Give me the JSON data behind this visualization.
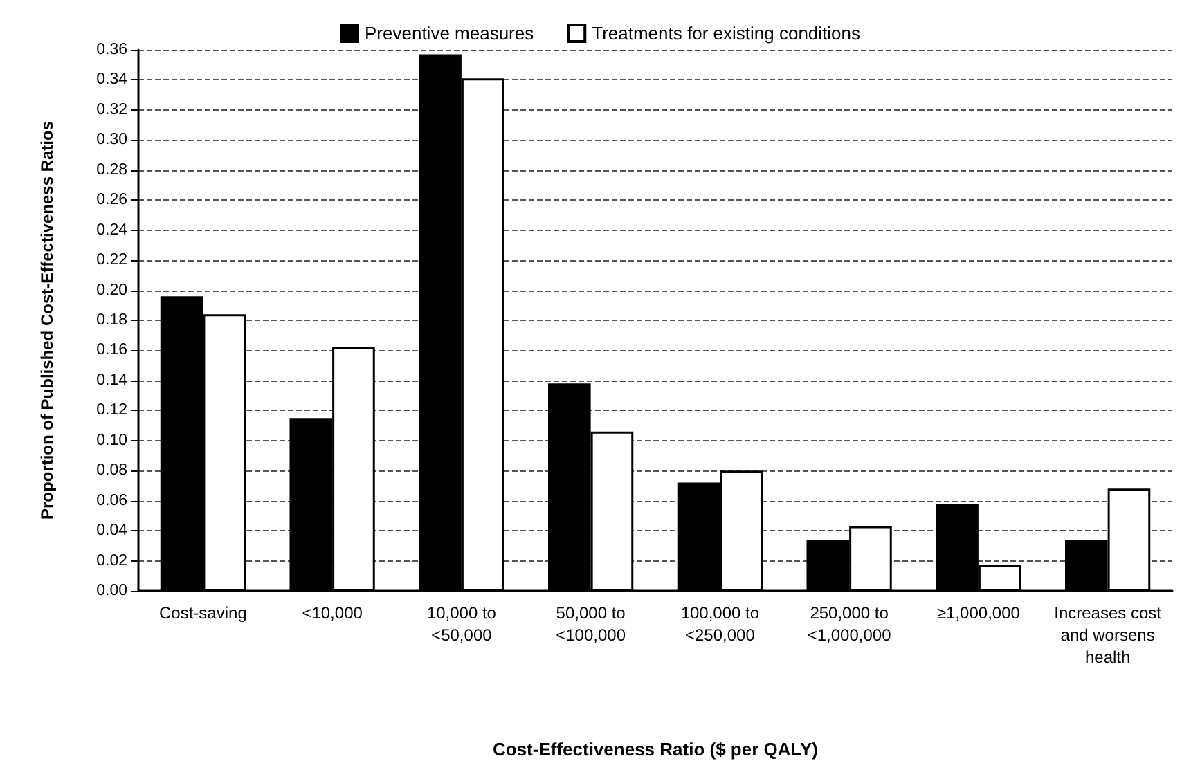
{
  "chart_data": {
    "type": "bar",
    "xlabel": "Cost-Effectiveness Ratio ($ per QALY)",
    "ylabel": "Proportion of Published Cost-Effectiveness Ratios",
    "categories": [
      "Cost-saving",
      "<10,000",
      "10,000 to <50,000",
      "50,000 to <100,000",
      "100,000 to <250,000",
      "250,000 to <1,000,000",
      "≥1,000,000",
      "Increases cost and worsens health"
    ],
    "series": [
      {
        "name": "Preventive measures",
        "color": "#000000",
        "values": [
          0.196,
          0.115,
          0.357,
          0.138,
          0.072,
          0.034,
          0.058,
          0.034
        ]
      },
      {
        "name": "Treatments for existing conditions",
        "color": "#ffffff",
        "values": [
          0.184,
          0.162,
          0.341,
          0.106,
          0.08,
          0.043,
          0.017,
          0.068
        ]
      }
    ],
    "ylim": [
      0,
      0.36
    ],
    "yticks": [
      {
        "value": 0,
        "label": "0.00"
      },
      {
        "value": 0.02,
        "label": "0.02"
      },
      {
        "value": 0.04,
        "label": "0.04"
      },
      {
        "value": 0.06,
        "label": "0.06"
      },
      {
        "value": 0.08,
        "label": "0.08"
      },
      {
        "value": 0.1,
        "label": "0.10"
      },
      {
        "value": 0.12,
        "label": "0.12"
      },
      {
        "value": 0.14,
        "label": "0.14"
      },
      {
        "value": 0.16,
        "label": "0.16"
      },
      {
        "value": 0.18,
        "label": "0.18"
      },
      {
        "value": 0.2,
        "label": "0.20"
      },
      {
        "value": 0.22,
        "label": "0.22"
      },
      {
        "value": 0.24,
        "label": "0.24"
      },
      {
        "value": 0.26,
        "label": "0.26"
      },
      {
        "value": 0.28,
        "label": "0.28"
      },
      {
        "value": 0.3,
        "label": "0.30"
      },
      {
        "value": 0.32,
        "label": "0.32"
      },
      {
        "value": 0.34,
        "label": "0.34"
      },
      {
        "value": 0.36,
        "label": "0.36"
      }
    ],
    "grid": "y",
    "line_style": "dashed",
    "legend": "top"
  }
}
